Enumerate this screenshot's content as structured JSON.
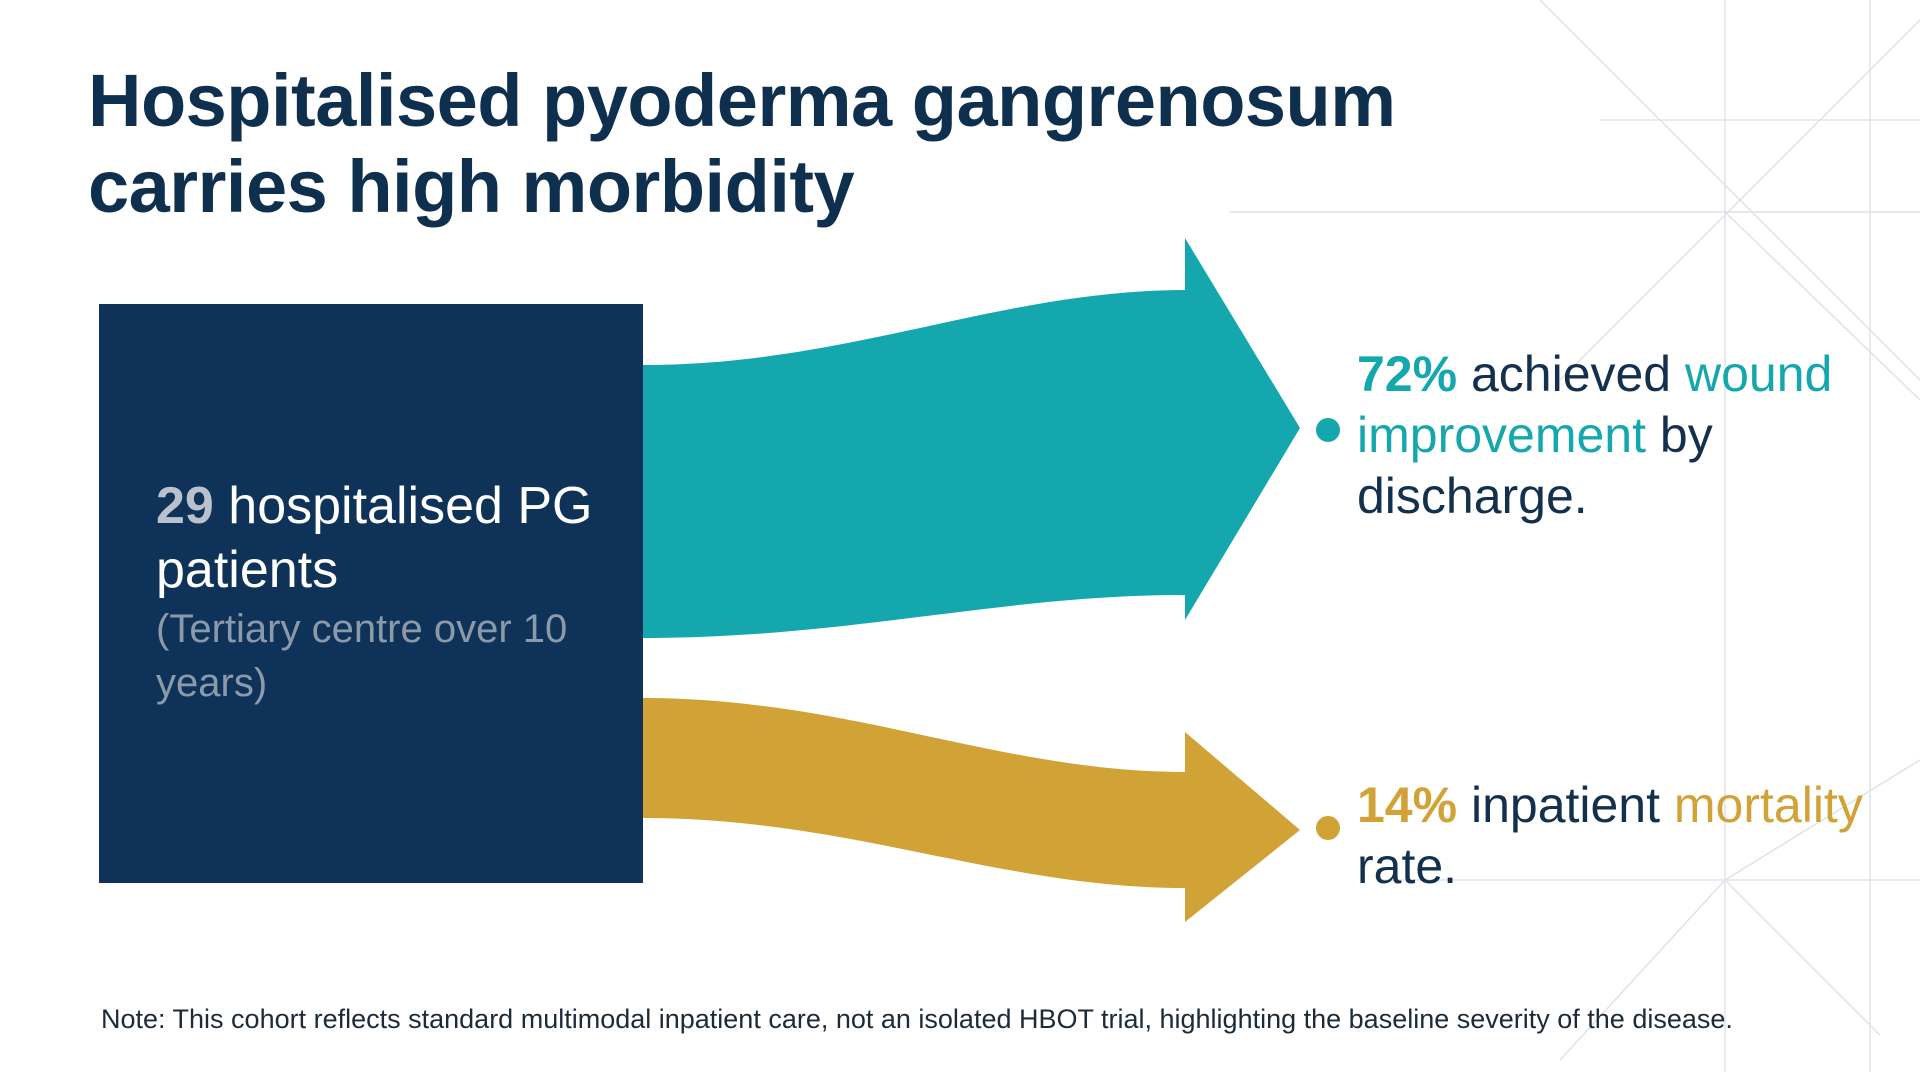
{
  "title": "Hospitalised pyoderma gangrenosum carries high morbidity",
  "source": {
    "count": "29",
    "label": " hospitalised PG patients",
    "sub": "(Tertiary centre over 10 years)"
  },
  "outcomes": [
    {
      "value": "72%",
      "text_after_value": " achieved ",
      "highlight": "wound improvement",
      "text_end": " by discharge.",
      "color": "#15a7ae"
    },
    {
      "value": "14%",
      "text_after_value": " inpatient ",
      "highlight": "mortality",
      "text_end": " rate.",
      "color": "#d1a236"
    }
  ],
  "note": "Note: This cohort reflects standard multimodal inpatient care, not an isolated HBOT trial, highlighting the baseline severity of the disease.",
  "colors": {
    "navy": "#0f3358",
    "teal": "#15a7ae",
    "gold": "#d1a236",
    "title": "#0f2f4f"
  }
}
